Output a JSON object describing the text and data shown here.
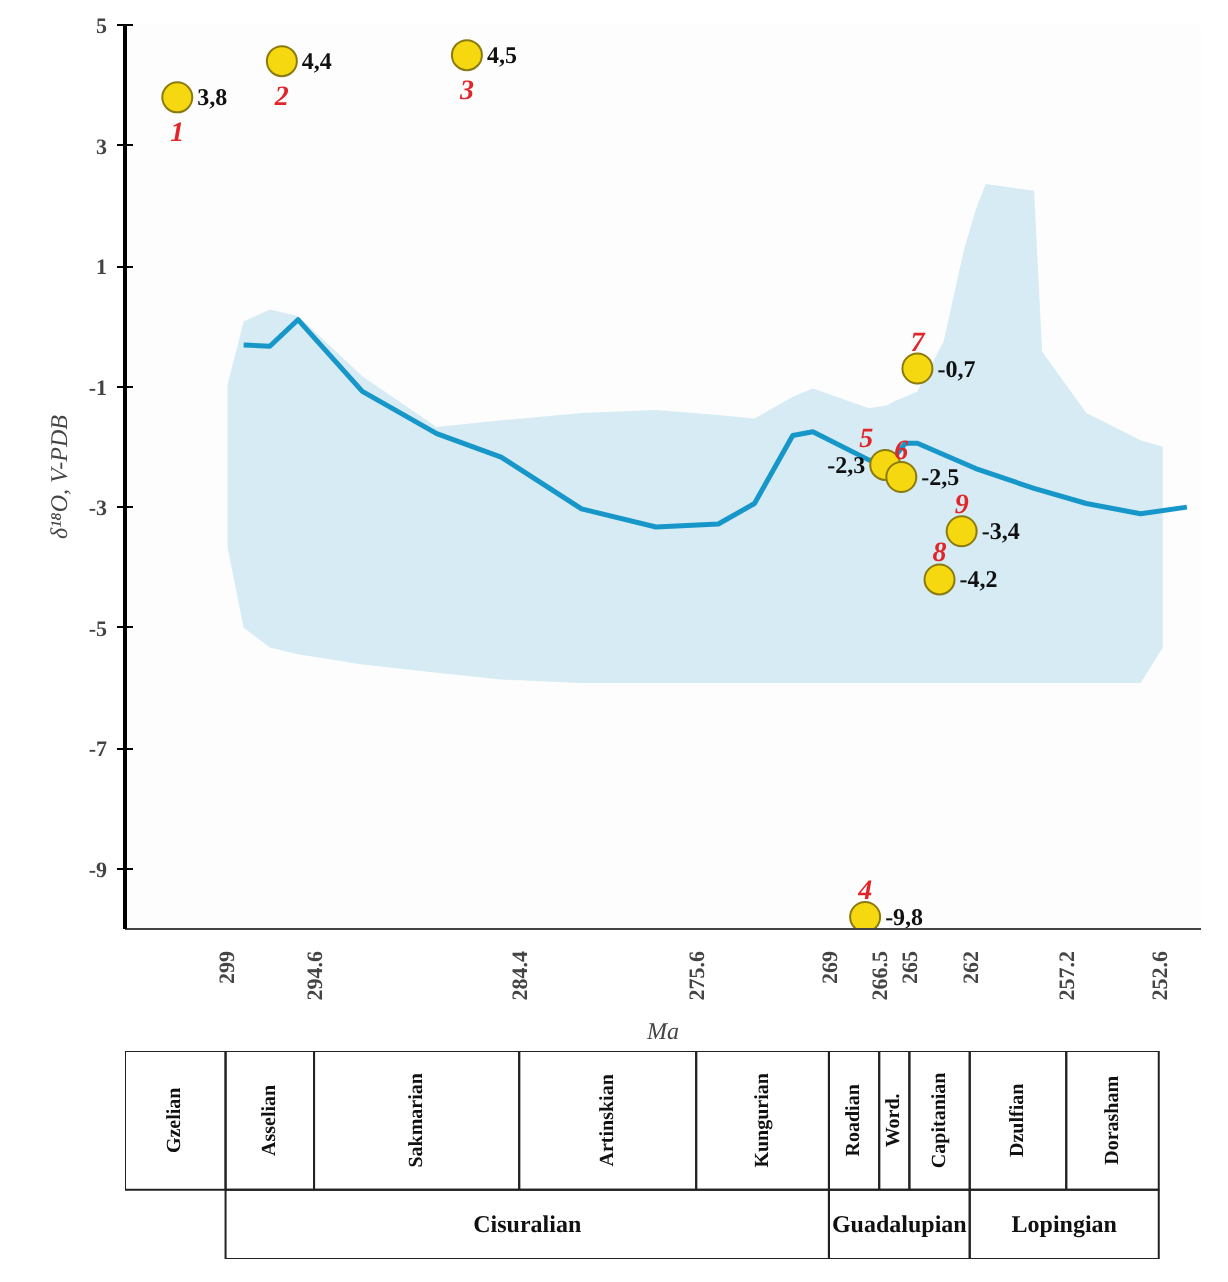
{
  "chart_data": {
    "type": "scatter",
    "xlabel": "Ma",
    "ylabel": "δ¹⁸O, V-PDB",
    "xlim": [
      304,
      250.5
    ],
    "ylim": [
      -10,
      5
    ],
    "xticks": [
      299,
      294.6,
      284.4,
      275.6,
      269,
      266.5,
      265,
      262,
      257.2,
      252.6
    ],
    "yticks": [
      5,
      3,
      1,
      -1,
      -3,
      -5,
      -7,
      -9
    ],
    "series": [
      {
        "type": "line",
        "color": "#1797c9",
        "x": [
          298.9,
          298.1,
          296.8,
          295.4,
          292.2,
          288.5,
          285.3,
          281.3,
          277.6,
          274.5,
          272.7,
          270.8,
          269.8,
          267.0,
          266.1,
          265.8,
          265.2,
          264.6,
          263.3,
          262.3,
          261.7,
          261.2,
          258.8,
          258.4,
          256.2,
          253.5,
          252.4,
          251.2
        ],
        "values": [
          null,
          -0.31,
          -0.33,
          0.11,
          -1.08,
          -1.78,
          -2.17,
          -3.03,
          -3.33,
          -3.28,
          -2.94,
          -1.81,
          -1.75,
          -2.22,
          null,
          -2.19,
          -1.94,
          -1.94,
          null,
          null,
          -2.36,
          null,
          -2.69,
          null,
          -2.94,
          -3.11,
          null,
          -3.0
        ],
        "upper": [
          -0.97,
          0.08,
          0.28,
          0.17,
          -0.83,
          -1.67,
          -1.56,
          -1.44,
          -1.39,
          -1.47,
          -1.53,
          -1.17,
          -1.03,
          -1.36,
          -1.31,
          -1.25,
          -1.17,
          -1.08,
          -0.25,
          1.25,
          1.94,
          2.36,
          2.25,
          -0.42,
          -1.44,
          -1.89,
          -2.0,
          null
        ],
        "lower": [
          -3.67,
          -5.0,
          -5.33,
          -5.44,
          -5.61,
          -5.75,
          -5.86,
          -5.92,
          -5.92,
          -5.92,
          -5.92,
          -5.92,
          -5.92,
          -5.92,
          -5.92,
          -5.92,
          -5.92,
          -5.92,
          -5.92,
          -5.92,
          -5.92,
          -5.92,
          -5.92,
          -5.92,
          -5.92,
          -5.92,
          -5.33,
          null
        ]
      },
      {
        "marker": "circle",
        "color": "#f5d80f",
        "x": [
          301.4,
          296.2,
          287.0,
          267.2,
          266.2,
          265.4,
          264.6,
          263.5,
          262.4
        ],
        "values": [
          3.8,
          4.4,
          4.5,
          -9.8,
          -2.3,
          -2.5,
          -0.7,
          -4.2,
          -3.4
        ],
        "value_labels": [
          "3,8",
          "4,4",
          "4,5",
          "-9,8",
          "-2,3",
          "-2,5",
          "-0,7",
          "-4,2",
          "-3,4"
        ]
      }
    ],
    "annotations": [
      {
        "text": "1",
        "x": 301.4,
        "y": 3.8
      },
      {
        "text": "2",
        "x": 296.2,
        "y": 4.4
      },
      {
        "text": "3",
        "x": 287.0,
        "y": 4.5
      },
      {
        "text": "4",
        "x": 267.2,
        "y": -9.8
      },
      {
        "text": "5",
        "x": 266.2,
        "y": -2.3
      },
      {
        "text": "6",
        "x": 265.4,
        "y": -2.5
      },
      {
        "text": "7",
        "x": 264.6,
        "y": -0.7
      },
      {
        "text": "8",
        "x": 263.5,
        "y": -4.2
      },
      {
        "text": "9",
        "x": 262.4,
        "y": -3.4
      },
      "Gzelian",
      "Asselian",
      "Sakmarian",
      "Artinskian",
      "Kungurian",
      "Roadian",
      "Word.",
      "Capitanian",
      "Dzulfian",
      "Dorasham",
      "Cisuralian",
      "Guadalupian",
      "Lopingian"
    ]
  }
}
